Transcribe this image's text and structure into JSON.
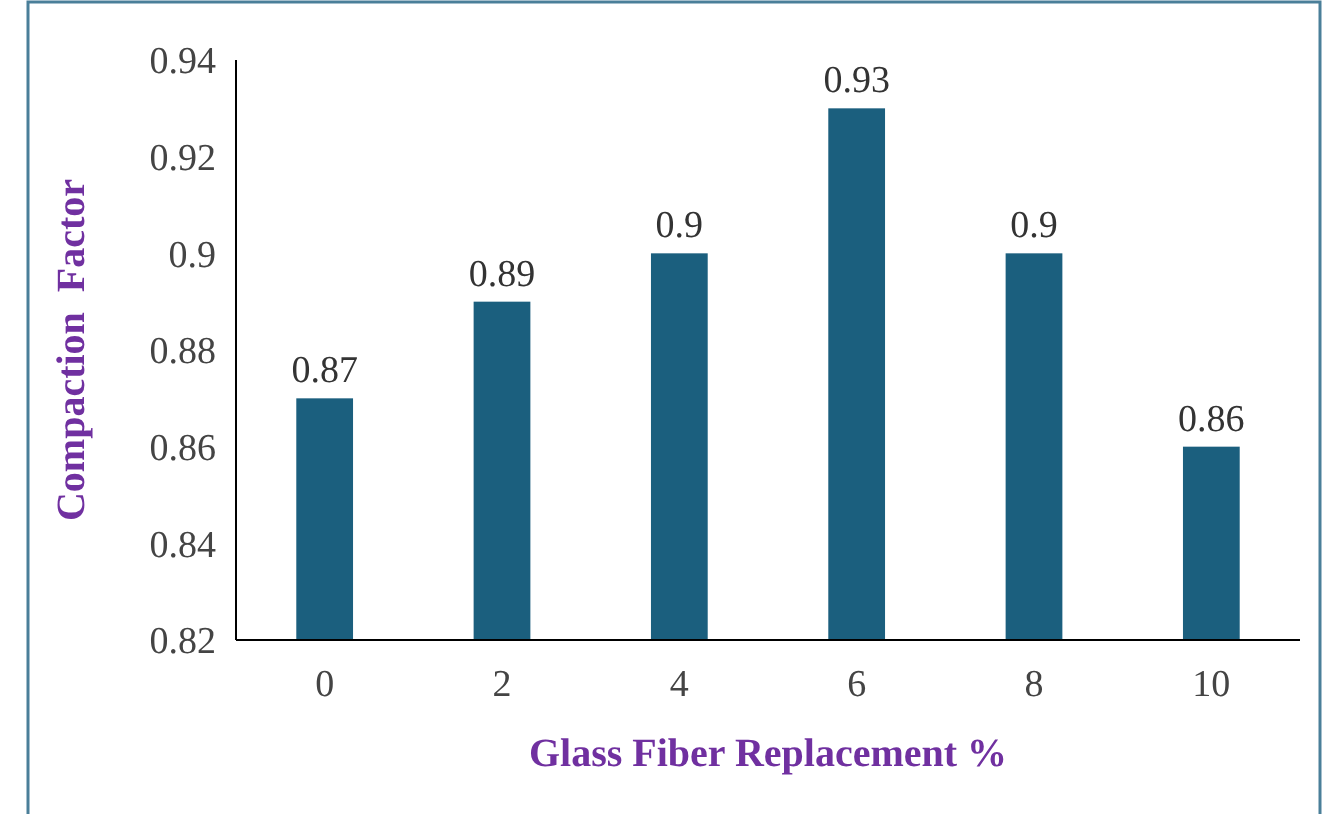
{
  "chart_data": {
    "type": "bar",
    "xlabel": "Glass Fiber Replacement %",
    "ylabel": "Compaction  Factor",
    "categories": [
      "0",
      "2",
      "4",
      "6",
      "8",
      "10"
    ],
    "values": [
      0.87,
      0.89,
      0.9,
      0.93,
      0.9,
      0.86
    ],
    "color": "#1b5f7e",
    "ylim": [
      0.82,
      0.94
    ],
    "yticks": [
      0.82,
      0.84,
      0.86,
      0.88,
      0.9,
      0.92,
      0.94
    ],
    "grid": false,
    "data_labels": true
  }
}
